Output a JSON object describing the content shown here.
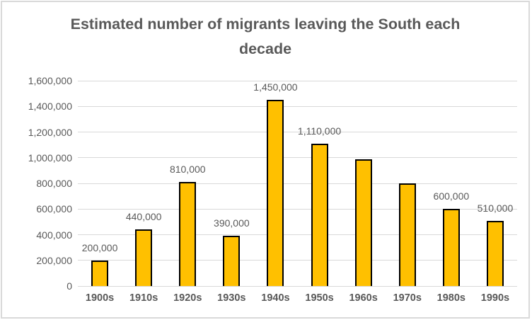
{
  "chart_data": {
    "type": "bar",
    "title": "Estimated number of migrants leaving the South each decade",
    "categories": [
      "1900s",
      "1910s",
      "1920s",
      "1930s",
      "1940s",
      "1950s",
      "1960s",
      "1970s",
      "1980s",
      "1990s"
    ],
    "values": [
      200000,
      440000,
      810000,
      390000,
      1450000,
      1110000,
      990000,
      800000,
      600000,
      510000
    ],
    "data_labels": [
      "200,000",
      "440,000",
      "810,000",
      "390,000",
      "1,450,000",
      "1,110,000",
      "",
      "",
      "600,000",
      "510,000"
    ],
    "xlabel": "",
    "ylabel": "",
    "ylim": [
      0,
      1600000
    ],
    "y_tick_step": 200000,
    "y_tick_labels": [
      "0",
      "200,000",
      "400,000",
      "600,000",
      "800,000",
      "1,000,000",
      "1,200,000",
      "1,400,000",
      "1,600,000"
    ],
    "grid": true,
    "legend_position": "none",
    "colors": {
      "bar_fill": "#FFC000",
      "bar_border": "#000000",
      "gridline": "#D9D9D9",
      "text": "#595959",
      "frame_border": "#D9D9D9",
      "background": "#FFFFFF"
    }
  }
}
